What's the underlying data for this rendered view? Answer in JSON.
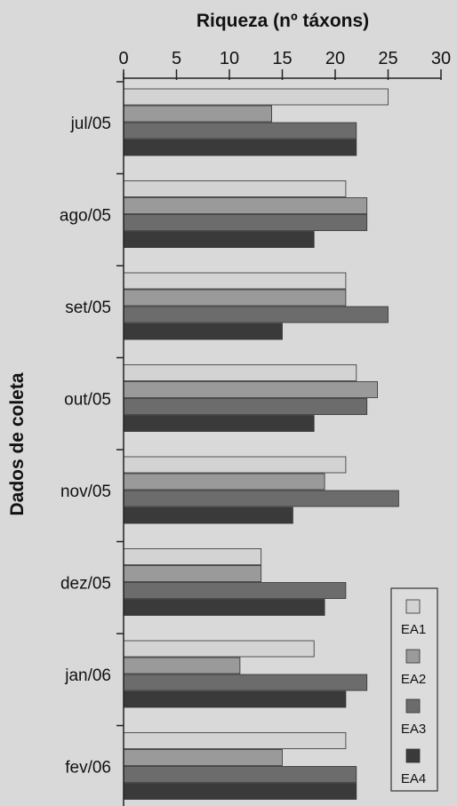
{
  "chart_data": {
    "type": "bar",
    "orientation": "horizontal",
    "xlabel": "Riqueza (nº táxons)",
    "ylabel": "Dados de coleta",
    "xlim": [
      0,
      30
    ],
    "xticks": [
      0,
      5,
      10,
      15,
      20,
      25,
      30
    ],
    "categories": [
      "jul/05",
      "ago/05",
      "set/05",
      "out/05",
      "nov/05",
      "dez/05",
      "jan/06",
      "fev/06"
    ],
    "series": [
      {
        "name": "EA1",
        "color": "#d3d3d3",
        "values": [
          25,
          21,
          21,
          22,
          21,
          13,
          18,
          21
        ]
      },
      {
        "name": "EA2",
        "color": "#9a9a9a",
        "values": [
          14,
          23,
          21,
          24,
          19,
          13,
          11,
          15
        ]
      },
      {
        "name": "EA3",
        "color": "#6c6c6c",
        "values": [
          22,
          23,
          25,
          23,
          26,
          21,
          23,
          22
        ]
      },
      {
        "name": "EA4",
        "color": "#3a3a3a",
        "values": [
          22,
          18,
          15,
          18,
          16,
          19,
          21,
          22
        ]
      }
    ],
    "legend_position": "right"
  }
}
